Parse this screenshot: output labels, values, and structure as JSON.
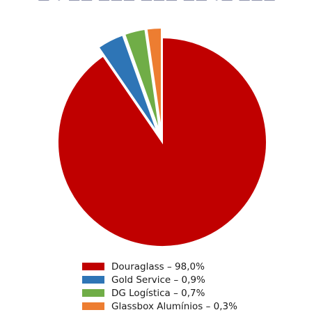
{
  "chart_data": {
    "type": "pie",
    "title": "",
    "slices": [
      {
        "label": "Douraglass – 98,0%",
        "value": 98.0,
        "color": "#c00000",
        "exploded": false
      },
      {
        "label": "Gold Service – 0,9%",
        "value": 0.9,
        "color": "#2e75b6",
        "exploded": true
      },
      {
        "label": "DG Logística – 0,7%",
        "value": 0.7,
        "color": "#70ad47",
        "exploded": true
      },
      {
        "label": "Glassbox Alumínios – 0,3%",
        "value": 0.3,
        "color": "#ed7d31",
        "exploded": true
      }
    ],
    "legend_position": "bottom"
  }
}
